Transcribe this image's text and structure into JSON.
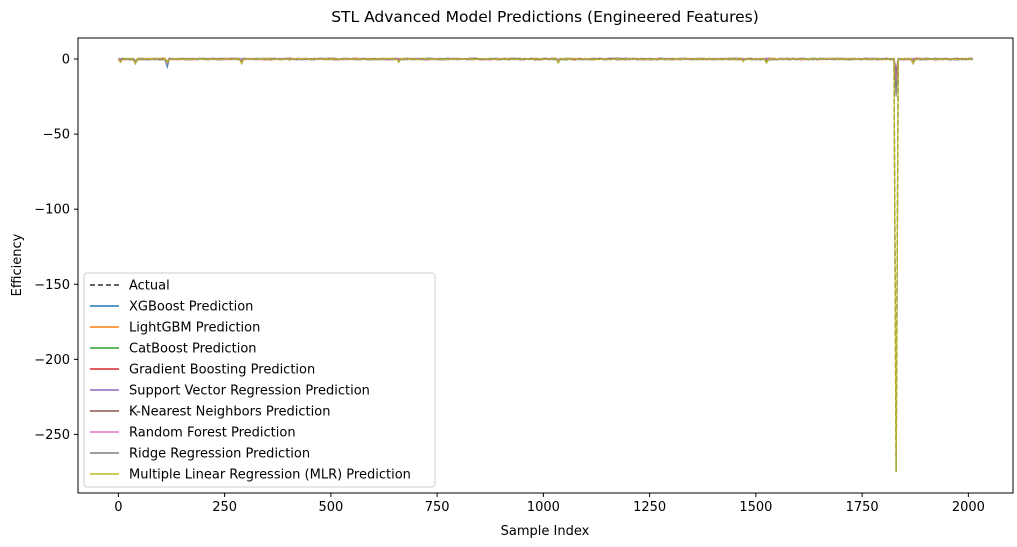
{
  "chart_data": {
    "type": "line",
    "title": "STL Advanced Model Predictions (Engineered Features)",
    "xlabel": "Sample Index",
    "ylabel": "Efficiency",
    "xlim": [
      -95,
      2105
    ],
    "ylim": [
      -289,
      14
    ],
    "xticks": [
      0,
      250,
      500,
      750,
      1000,
      1250,
      1500,
      1750,
      2000
    ],
    "yticks": [
      0,
      -50,
      -100,
      -150,
      -200,
      -250
    ],
    "grid": false,
    "legend_position": "lower-left",
    "x_range": [
      0,
      2010
    ],
    "baseline": 0,
    "series": [
      {
        "name": "Actual",
        "color": "#333333",
        "dash": true,
        "spikes": [
          [
            5,
            -1.5
          ],
          [
            40,
            -2
          ],
          [
            113,
            -2
          ],
          [
            290,
            -2
          ],
          [
            1035,
            -1.5
          ],
          [
            1470,
            -1
          ],
          [
            1525,
            -1.5
          ],
          [
            1830,
            -275
          ],
          [
            1870,
            -2
          ]
        ]
      },
      {
        "name": "XGBoost Prediction",
        "color": "#1f77b4",
        "dash": false,
        "spikes": [
          [
            5,
            -2
          ],
          [
            40,
            -3
          ],
          [
            113,
            -5
          ],
          [
            290,
            -2
          ],
          [
            660,
            -1.5
          ],
          [
            1035,
            -2
          ],
          [
            1525,
            -2
          ],
          [
            1830,
            -20
          ],
          [
            1870,
            -2
          ]
        ]
      },
      {
        "name": "LightGBM Prediction",
        "color": "#ff7f0e",
        "dash": false,
        "spikes": [
          [
            5,
            -1.5
          ],
          [
            40,
            -2
          ],
          [
            113,
            -3
          ],
          [
            290,
            -1.5
          ],
          [
            1035,
            -1.5
          ],
          [
            1830,
            -15
          ],
          [
            1870,
            -1.5
          ]
        ]
      },
      {
        "name": "CatBoost Prediction",
        "color": "#2ca02c",
        "dash": false,
        "spikes": [
          [
            5,
            -1.5
          ],
          [
            40,
            -2.5
          ],
          [
            113,
            -3
          ],
          [
            290,
            -2
          ],
          [
            1035,
            -2
          ],
          [
            1525,
            -1.5
          ],
          [
            1830,
            -18
          ],
          [
            1870,
            -2
          ]
        ]
      },
      {
        "name": "Gradient Boosting Prediction",
        "color": "#d62728",
        "dash": false,
        "spikes": [
          [
            5,
            -1.5
          ],
          [
            40,
            -2
          ],
          [
            113,
            -2.5
          ],
          [
            290,
            -1.5
          ],
          [
            1035,
            -1.5
          ],
          [
            1830,
            -12
          ],
          [
            1870,
            -1.5
          ]
        ]
      },
      {
        "name": "Support Vector Regression Prediction",
        "color": "#9467bd",
        "dash": false,
        "spikes": [
          [
            40,
            -1
          ],
          [
            113,
            -1.5
          ],
          [
            1830,
            -8
          ]
        ]
      },
      {
        "name": "K-Nearest Neighbors Prediction",
        "color": "#8c564b",
        "dash": false,
        "spikes": [
          [
            5,
            -1
          ],
          [
            40,
            -1.5
          ],
          [
            113,
            -2
          ],
          [
            290,
            -1.5
          ],
          [
            1035,
            -1.5
          ],
          [
            1830,
            -10
          ],
          [
            1870,
            -1.5
          ]
        ]
      },
      {
        "name": "Random Forest Prediction",
        "color": "#e377c2",
        "dash": false,
        "spikes": [
          [
            5,
            -1.5
          ],
          [
            40,
            -2
          ],
          [
            113,
            -3
          ],
          [
            290,
            -2
          ],
          [
            1035,
            -1.5
          ],
          [
            1830,
            -16
          ],
          [
            1870,
            -2
          ]
        ]
      },
      {
        "name": "Ridge Regression Prediction",
        "color": "#7f7f7f",
        "dash": false,
        "spikes": [
          [
            5,
            -2
          ],
          [
            40,
            -3
          ],
          [
            113,
            -2
          ],
          [
            290,
            -3
          ],
          [
            660,
            -2
          ],
          [
            1035,
            -2.5
          ],
          [
            1470,
            -1.5
          ],
          [
            1525,
            -2.5
          ],
          [
            1830,
            -25
          ],
          [
            1870,
            -3
          ]
        ]
      },
      {
        "name": "Multiple Linear Regression (MLR) Prediction",
        "color": "#bcbd22",
        "dash": false,
        "spikes": [
          [
            5,
            -2
          ],
          [
            40,
            -3
          ],
          [
            113,
            -2
          ],
          [
            290,
            -3
          ],
          [
            660,
            -2
          ],
          [
            1035,
            -2.5
          ],
          [
            1470,
            -1.5
          ],
          [
            1525,
            -2.5
          ],
          [
            1830,
            -275
          ],
          [
            1870,
            -3
          ]
        ]
      }
    ]
  }
}
